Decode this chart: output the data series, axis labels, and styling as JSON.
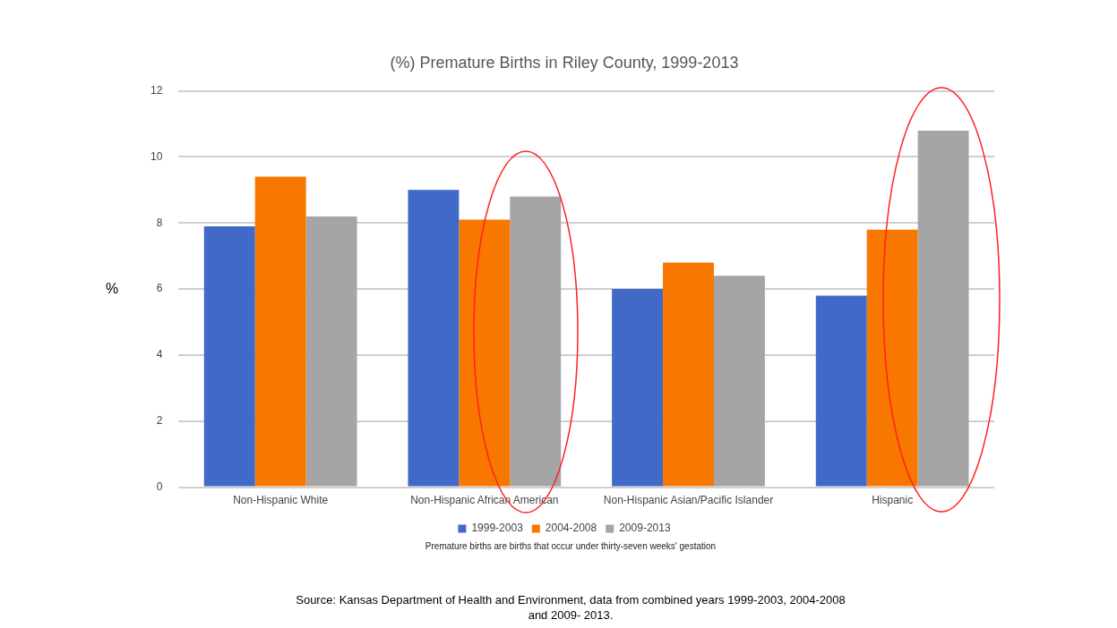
{
  "chart_data": {
    "type": "bar",
    "title": "(%) Premature Births in Riley County, 1999-2013",
    "ylabel": "%",
    "categories": [
      "Non-Hispanic White",
      "Non-Hispanic African American",
      "Non-Hispanic Asian/Pacific Islander",
      "Hispanic"
    ],
    "series": [
      {
        "name": "1999-2003",
        "color": "#4169c8",
        "values": [
          7.9,
          9.0,
          6.0,
          5.8
        ]
      },
      {
        "name": "2004-2008",
        "color": "#f87700",
        "values": [
          9.4,
          8.1,
          6.8,
          7.8
        ]
      },
      {
        "name": "2009-2013",
        "color": "#a5a5a5",
        "values": [
          8.2,
          8.8,
          6.4,
          10.8
        ]
      }
    ],
    "ylim": [
      0,
      12
    ],
    "yticks": [
      0,
      2,
      4,
      6,
      8,
      10,
      12
    ],
    "grid": "y",
    "legend": "bottom",
    "annotations": [
      "Premature births are births that occur under thirty-seven weeks' gestation",
      "Source: Kansas Department of Health and Environment, data from combined years 1999-2003, 2004-2008 and 2009- 2013."
    ]
  }
}
